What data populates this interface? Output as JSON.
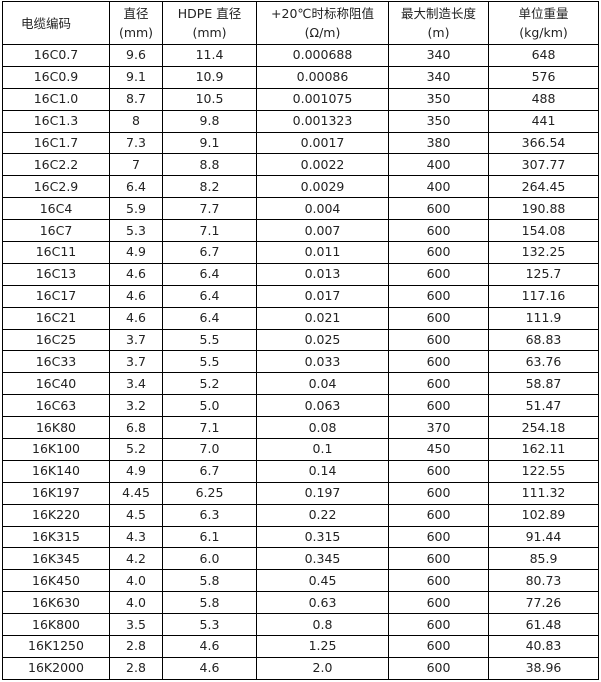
{
  "table": {
    "header": [
      [
        "电缆编码"
      ],
      [
        "直径",
        "(mm)"
      ],
      [
        "HDPE 直径",
        "(mm)"
      ],
      [
        "+20℃时标称阻值",
        "(Ω/m)"
      ],
      [
        "最大制造长度",
        "(m)"
      ],
      [
        "单位重量",
        "(kg/km)"
      ]
    ],
    "rows": [
      [
        "16C0.7",
        "9.6",
        "11.4",
        "0.000688",
        "340",
        "648"
      ],
      [
        "16C0.9",
        "9.1",
        "10.9",
        "0.00086",
        "340",
        "576"
      ],
      [
        "16C1.0",
        "8.7",
        "10.5",
        "0.001075",
        "350",
        "488"
      ],
      [
        "16C1.3",
        "8",
        "9.8",
        "0.001323",
        "350",
        "441"
      ],
      [
        "16C1.7",
        "7.3",
        "9.1",
        "0.0017",
        "380",
        "366.54"
      ],
      [
        "16C2.2",
        "7",
        "8.8",
        "0.0022",
        "400",
        "307.77"
      ],
      [
        "16C2.9",
        "6.4",
        "8.2",
        "0.0029",
        "400",
        "264.45"
      ],
      [
        "16C4",
        "5.9",
        "7.7",
        "0.004",
        "600",
        "190.88"
      ],
      [
        "16C7",
        "5.3",
        "7.1",
        "0.007",
        "600",
        "154.08"
      ],
      [
        "16C11",
        "4.9",
        "6.7",
        "0.011",
        "600",
        "132.25"
      ],
      [
        "16C13",
        "4.6",
        "6.4",
        "0.013",
        "600",
        "125.7"
      ],
      [
        "16C17",
        "4.6",
        "6.4",
        "0.017",
        "600",
        "117.16"
      ],
      [
        "16C21",
        "4.6",
        "6.4",
        "0.021",
        "600",
        "111.9"
      ],
      [
        "16C25",
        "3.7",
        "5.5",
        "0.025",
        "600",
        "68.83"
      ],
      [
        "16C33",
        "3.7",
        "5.5",
        "0.033",
        "600",
        "63.76"
      ],
      [
        "16C40",
        "3.4",
        "5.2",
        "0.04",
        "600",
        "58.87"
      ],
      [
        "16C63",
        "3.2",
        "5.0",
        "0.063",
        "600",
        "51.47"
      ],
      [
        "16K80",
        "6.8",
        "7.1",
        "0.08",
        "370",
        "254.18"
      ],
      [
        "16K100",
        "5.2",
        "7.0",
        "0.1",
        "450",
        "162.11"
      ],
      [
        "16K140",
        "4.9",
        "6.7",
        "0.14",
        "600",
        "122.55"
      ],
      [
        "16K197",
        "4.45",
        "6.25",
        "0.197",
        "600",
        "111.32"
      ],
      [
        "16K220",
        "4.5",
        "6.3",
        "0.22",
        "600",
        "102.89"
      ],
      [
        "16K315",
        "4.3",
        "6.1",
        "0.315",
        "600",
        "91.44"
      ],
      [
        "16K345",
        "4.2",
        "6.0",
        "0.345",
        "600",
        "85.9"
      ],
      [
        "16K450",
        "4.0",
        "5.8",
        "0.45",
        "600",
        "80.73"
      ],
      [
        "16K630",
        "4.0",
        "5.8",
        "0.63",
        "600",
        "77.26"
      ],
      [
        "16K800",
        "3.5",
        "5.3",
        "0.8",
        "600",
        "61.48"
      ],
      [
        "16K1250",
        "2.8",
        "4.6",
        "1.25",
        "600",
        "40.83"
      ],
      [
        "16K2000",
        "2.8",
        "4.6",
        "2.0",
        "600",
        "38.96"
      ]
    ]
  }
}
